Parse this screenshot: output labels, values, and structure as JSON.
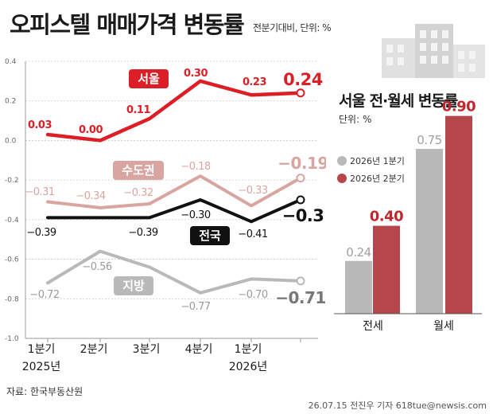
{
  "header": {
    "title": "오피스텔 매매가격 변동률",
    "subtitle": "전분기대비, 단위: %"
  },
  "colors": {
    "seoul": "#dc1f26",
    "capital": "#d9a5a0",
    "national": "#111111",
    "regional": "#b9b9b9",
    "bar_q1": "#b9b9b9",
    "bar_q2": "#b5474c"
  },
  "chart_data": [
    {
      "type": "line",
      "x": [
        "1분기",
        "2분기",
        "3분기",
        "4분기",
        "1분기",
        ""
      ],
      "year_labels": [
        "2025년",
        "2026년"
      ],
      "ylim": [
        -1.0,
        0.4
      ],
      "yticks": [
        "0.4",
        "0.2",
        "0.0",
        "-0.2",
        "-0.4",
        "-0.6",
        "-0.8",
        "-1.0"
      ],
      "grid": true,
      "series": [
        {
          "name": "서울",
          "values": [
            0.03,
            0.0,
            0.11,
            0.3,
            0.23,
            0.24
          ],
          "labels": [
            "0.03",
            "0.00",
            "0.11",
            "0.30",
            "0.23",
            "0.24"
          ]
        },
        {
          "name": "수도권",
          "values": [
            -0.31,
            -0.34,
            -0.32,
            -0.18,
            -0.33,
            -0.19
          ],
          "labels": [
            "−0.31",
            "−0.34",
            "−0.32",
            "−0.18",
            "−0.33",
            "−0.19"
          ]
        },
        {
          "name": "전국",
          "values": [
            -0.39,
            -0.39,
            -0.39,
            -0.3,
            -0.41,
            -0.3
          ],
          "labels": [
            "−0.39",
            "",
            "−0.39",
            "−0.30",
            "−0.41",
            "−0.3"
          ]
        },
        {
          "name": "지방",
          "values": [
            -0.72,
            -0.56,
            -0.64,
            -0.77,
            -0.7,
            -0.71
          ],
          "labels": [
            "−0.72",
            "−0.56",
            "",
            "−0.77",
            "−0.70",
            "−0.71"
          ]
        }
      ]
    },
    {
      "type": "bar",
      "title": "서울 전·월세 변동률",
      "unit": "단위: %",
      "categories": [
        "전세",
        "월세"
      ],
      "series": [
        {
          "name": "2026년 1분기",
          "values": [
            0.24,
            0.75
          ],
          "labels": [
            "0.24",
            "0.75"
          ]
        },
        {
          "name": "2026년 2분기",
          "values": [
            0.4,
            0.9
          ],
          "labels": [
            "0.40",
            "0.90"
          ]
        }
      ],
      "ylim": [
        0,
        1.0
      ]
    }
  ],
  "footer": {
    "source": "자료: 한국부동산원",
    "credit": "26.07.15 전진우 기자 618tue@newsis.com"
  }
}
